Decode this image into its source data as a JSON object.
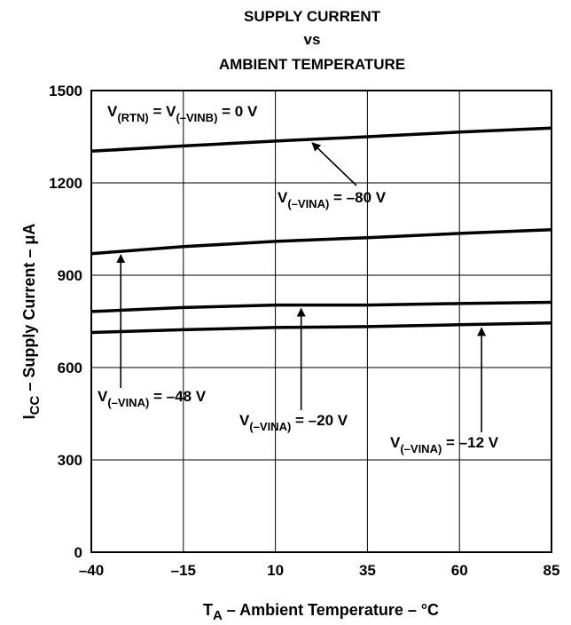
{
  "chart_data": {
    "type": "line",
    "title": [
      "SUPPLY CURRENT",
      "vs",
      "AMBIENT TEMPERATURE"
    ],
    "xlabel": {
      "main": "T",
      "sub": "A",
      "rest": " – Ambient Temperature – °C"
    },
    "ylabel": {
      "main": "I",
      "sub": "CC",
      "rest": " – Supply Current – μA"
    },
    "xlim": [
      -40,
      85
    ],
    "ylim": [
      0,
      1500
    ],
    "xticks": [
      "–40",
      "–15",
      "10",
      "35",
      "60",
      "85"
    ],
    "xtick_values": [
      -40,
      -15,
      10,
      35,
      60,
      85
    ],
    "yticks": [
      "0",
      "300",
      "600",
      "900",
      "1200",
      "1500"
    ],
    "ytick_values": [
      0,
      300,
      600,
      900,
      1200,
      1500
    ],
    "grid": true,
    "series": [
      {
        "name": "V(–VINA) = –80 V",
        "x": [
          -40,
          -15,
          10,
          35,
          60,
          85
        ],
        "values": [
          1303,
          1320,
          1336,
          1350,
          1365,
          1378
        ]
      },
      {
        "name": "V(–VINA) = –48 V",
        "x": [
          -40,
          -15,
          10,
          35,
          60,
          85
        ],
        "values": [
          970,
          993,
          1010,
          1022,
          1036,
          1048
        ]
      },
      {
        "name": "V(–VINA) = –20 V",
        "x": [
          -40,
          -15,
          10,
          35,
          60,
          85
        ],
        "values": [
          782,
          795,
          803,
          803,
          808,
          812
        ]
      },
      {
        "name": "V(–VINA) = –12 V",
        "x": [
          -40,
          -15,
          10,
          35,
          60,
          85
        ],
        "values": [
          714,
          723,
          730,
          733,
          739,
          745
        ]
      }
    ],
    "annotations": [
      {
        "id": "rtn",
        "parts": [
          [
            "V",
            ""
          ],
          [
            "(RTN)",
            "sub"
          ],
          [
            " = V",
            ""
          ],
          [
            "(–VINB)",
            "sub"
          ],
          [
            " = 0 V",
            ""
          ]
        ]
      },
      {
        "id": "vina80",
        "parts": [
          [
            "V",
            ""
          ],
          [
            "(–VINA)",
            "sub"
          ],
          [
            " = –80 V",
            ""
          ]
        ],
        "series": 0,
        "arrow_x": 20
      },
      {
        "id": "vina48",
        "parts": [
          [
            "V",
            ""
          ],
          [
            "(–VINA)",
            "sub"
          ],
          [
            " = –48 V",
            ""
          ]
        ],
        "series": 1,
        "arrow_x": -32
      },
      {
        "id": "vina20",
        "parts": [
          [
            "V",
            ""
          ],
          [
            "(–VINA)",
            "sub"
          ],
          [
            " = –20 V",
            ""
          ]
        ],
        "series": 2,
        "arrow_x": 17
      },
      {
        "id": "vina12",
        "parts": [
          [
            "V",
            ""
          ],
          [
            "(–VINA)",
            "sub"
          ],
          [
            " = –12 V",
            ""
          ]
        ],
        "series": 3,
        "arrow_x": 66
      }
    ]
  }
}
